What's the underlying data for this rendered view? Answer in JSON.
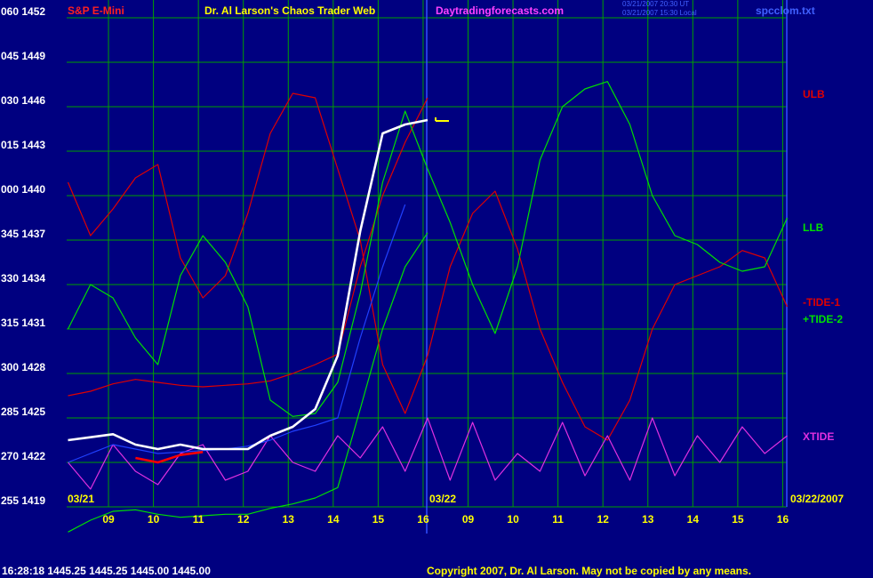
{
  "chart_data": {
    "type": "line",
    "title": "Dr. Al Larson's Chaos Trader Web",
    "instrument": "S&P E-Mini",
    "website": "Daytradingforecasts.com",
    "file": "spcclom.txt",
    "timestamps": [
      "03/21/2007 20:30 UT",
      "03/21/2007 15:30 Local"
    ],
    "date_labels": [
      "03/21",
      "03/22",
      "03/22/2007"
    ],
    "quote": "16:28:18  1445.25 1445.25 1445.00 1445.00",
    "copyright": "Copyright 2007, Dr. Al Larson. May not be copied by any means.",
    "grid": true,
    "xlim": [
      -0.93,
      15.09
    ],
    "ylim": [
      1417.2,
      1453.2
    ],
    "xticks": [
      {
        "value": 0,
        "label": "09"
      },
      {
        "value": 1,
        "label": "10"
      },
      {
        "value": 2,
        "label": "11"
      },
      {
        "value": 3,
        "label": "12"
      },
      {
        "value": 4,
        "label": "13"
      },
      {
        "value": 5,
        "label": "14"
      },
      {
        "value": 6,
        "label": "15"
      },
      {
        "value": 7,
        "label": "16"
      },
      {
        "value": 8,
        "label": "09"
      },
      {
        "value": 9,
        "label": "10"
      },
      {
        "value": 10,
        "label": "11"
      },
      {
        "value": 11,
        "label": "12"
      },
      {
        "value": 12,
        "label": "13"
      },
      {
        "value": 13,
        "label": "14"
      },
      {
        "value": 14,
        "label": "15"
      },
      {
        "value": 15,
        "label": "16"
      }
    ],
    "yticks": [
      {
        "value": 1452,
        "label": "060 1452"
      },
      {
        "value": 1449,
        "label": "045 1449"
      },
      {
        "value": 1446,
        "label": "030 1446"
      },
      {
        "value": 1443,
        "label": "015 1443"
      },
      {
        "value": 1440,
        "label": "000 1440"
      },
      {
        "value": 1437,
        "label": "345 1437"
      },
      {
        "value": 1434,
        "label": "330 1434"
      },
      {
        "value": 1431,
        "label": "315 1431"
      },
      {
        "value": 1428,
        "label": "300 1428"
      },
      {
        "value": 1425,
        "label": "285 1425"
      },
      {
        "value": 1422,
        "label": "270 1422"
      },
      {
        "value": 1419,
        "label": "255 1419"
      }
    ],
    "x": [
      -0.9,
      -0.4,
      0.1,
      0.6,
      1.1,
      1.6,
      2.1,
      2.6,
      3.1,
      3.6,
      4.1,
      4.6,
      5.1,
      5.6,
      6.1,
      6.6,
      7.1,
      7.6,
      8.1,
      8.6,
      9.1,
      9.6,
      10.1,
      10.6,
      11.1,
      11.6,
      12.1,
      12.6,
      13.1,
      13.6,
      14.1,
      14.6,
      15.1
    ],
    "series": [
      {
        "name": "ULB",
        "color": "#e00000",
        "values": [
          1426.5,
          1426.8,
          1427.3,
          1427.6,
          1427.4,
          1427.2,
          1427.1,
          1427.2,
          1427.3,
          1427.5,
          1428.0,
          1428.6,
          1429.3,
          1435.2,
          1440.0,
          1443.6,
          1446.6,
          null,
          null,
          null,
          null,
          null,
          null,
          null,
          null,
          null,
          null,
          null,
          null,
          null,
          null,
          null,
          null
        ]
      },
      {
        "name": "LLB",
        "color": "#00e000",
        "values": [
          1417.3,
          1418.1,
          1418.7,
          1418.8,
          1418.5,
          1418.3,
          1418.4,
          1418.5,
          1418.5,
          1418.9,
          1419.2,
          1419.6,
          1420.3,
          1425.6,
          1431.0,
          1435.2,
          1437.5,
          null,
          null,
          null,
          null,
          null,
          null,
          null,
          null,
          null,
          null,
          null,
          null,
          null,
          null,
          null,
          null
        ]
      },
      {
        "name": "-TIDE-1",
        "color": "#e00000",
        "values": [
          1440.9,
          1437.3,
          1439.1,
          1441.2,
          1442.1,
          1435.8,
          1433.1,
          1434.6,
          1438.8,
          1444.2,
          1446.9,
          1446.6,
          1441.8,
          1437.0,
          1428.6,
          1425.3,
          1429.2,
          1435.2,
          1438.8,
          1440.3,
          1436.4,
          1431.0,
          1427.4,
          1424.4,
          1423.5,
          1426.2,
          1431.0,
          1434.0,
          1434.6,
          1435.2,
          1436.3,
          1435.8,
          1432.5
        ]
      },
      {
        "name": "+TIDE-2",
        "color": "#00e000",
        "values": [
          1431.0,
          1434.0,
          1433.1,
          1430.4,
          1428.6,
          1434.6,
          1437.3,
          1435.5,
          1432.5,
          1426.2,
          1425.1,
          1425.3,
          1427.4,
          1433.4,
          1440.9,
          1445.7,
          1441.8,
          1438.2,
          1434.0,
          1430.7,
          1435.2,
          1442.4,
          1446.0,
          1447.2,
          1447.7,
          1444.8,
          1440.0,
          1437.3,
          1436.7,
          1435.5,
          1434.9,
          1435.2,
          1438.5
        ]
      },
      {
        "name": "XTIDE",
        "color": "#e030e0",
        "values": [
          1422.0,
          1420.2,
          1423.2,
          1421.4,
          1420.5,
          1422.6,
          1423.2,
          1420.8,
          1421.4,
          1423.8,
          1422.0,
          1421.4,
          1423.8,
          1422.3,
          1424.4,
          1421.4,
          1425.0,
          1420.8,
          1424.7,
          1420.8,
          1422.6,
          1421.4,
          1424.7,
          1421.1,
          1423.8,
          1420.8,
          1425.0,
          1421.1,
          1423.8,
          1422.0,
          1424.4,
          1422.6,
          1423.8
        ]
      },
      {
        "color": "#2040ff",
        "values": [
          1422.0,
          1422.6,
          1423.2,
          1422.9,
          1422.6,
          1422.7,
          1422.8,
          1422.9,
          1423.1,
          1423.5,
          1424.1,
          1424.5,
          1425.0,
          1430.4,
          1435.2,
          1439.4,
          null,
          null,
          null,
          null,
          null,
          null,
          null,
          null,
          null,
          null,
          null,
          null,
          null,
          null,
          null,
          null,
          null
        ]
      },
      {
        "color": "#ffffff",
        "values": [
          1423.5,
          1423.7,
          1423.9,
          1423.2,
          1422.9,
          1423.2,
          1422.9,
          1422.9,
          1422.9,
          1423.8,
          1424.4,
          1425.6,
          1429.2,
          1437.6,
          1444.2,
          1444.8,
          1445.1,
          null,
          null,
          null,
          null,
          null,
          null,
          null,
          null,
          null,
          null,
          null,
          null,
          null,
          null,
          null,
          null
        ]
      },
      {
        "color": "#ff0000",
        "values": [
          null,
          null,
          null,
          1422.3,
          1422.0,
          1422.5,
          1422.7,
          null,
          null,
          null,
          null,
          null,
          null,
          null,
          null,
          null,
          null,
          null,
          null,
          null,
          null,
          null,
          null,
          null,
          null,
          null,
          null,
          null,
          null,
          null,
          null,
          null,
          null
        ]
      }
    ]
  }
}
